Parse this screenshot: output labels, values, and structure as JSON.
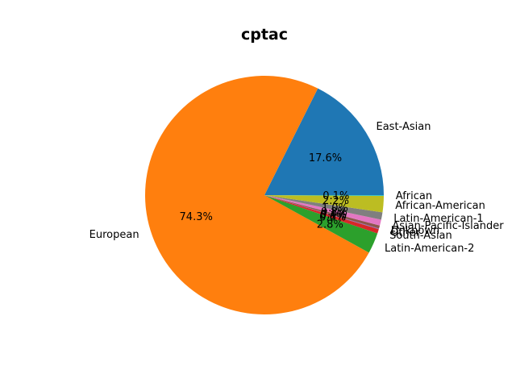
{
  "chart_data": {
    "type": "pie",
    "title": "cptac",
    "slices": [
      {
        "label": "East-Asian",
        "value": 17.6,
        "pct_text": "17.6%",
        "color": "#1f77b4"
      },
      {
        "label": "European",
        "value": 74.3,
        "pct_text": "74.3%",
        "color": "#ff7f0e"
      },
      {
        "label": "Latin-American-2",
        "value": 2.8,
        "pct_text": "2.8%",
        "color": "#2ca02c"
      },
      {
        "label": "South-Asian",
        "value": 0.6,
        "pct_text": "0.6%",
        "color": "#d62728"
      },
      {
        "label": "Other",
        "value": 0.1,
        "pct_text": "0.1%",
        "color": "#9467bd"
      },
      {
        "label": "Unknown",
        "value": 0.4,
        "pct_text": "0.4%",
        "color": "#8c564b"
      },
      {
        "label": "Asian-Pacific-Islander",
        "value": 0.8,
        "pct_text": "0.8%",
        "color": "#e377c2"
      },
      {
        "label": "Latin-American-1",
        "value": 1.0,
        "pct_text": "1.0%",
        "color": "#7f7f7f"
      },
      {
        "label": "African-American",
        "value": 2.2,
        "pct_text": "2.2%",
        "color": "#bcbd22"
      },
      {
        "label": "African",
        "value": 0.1,
        "pct_text": "0.1%",
        "color": "#17becf"
      }
    ]
  }
}
